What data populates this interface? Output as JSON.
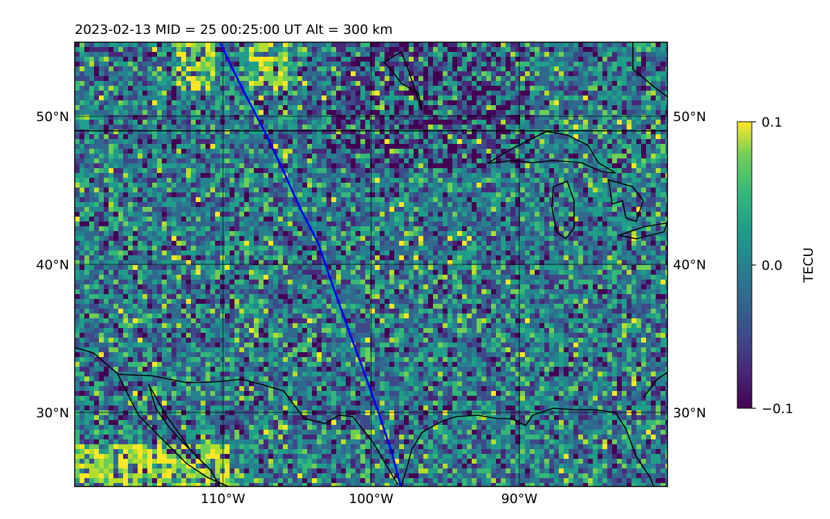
{
  "title": "2023-02-13  MID =  25    00:25:00  UT  Alt = 300 km",
  "map": {
    "lon_range": [
      -120,
      -80
    ],
    "lat_range": [
      25,
      55
    ],
    "gridlines": true,
    "lon_ticks": [
      {
        "value": -110,
        "label": "110°W"
      },
      {
        "value": -100,
        "label": "100°W"
      },
      {
        "value": -90,
        "label": "90°W"
      }
    ],
    "lat_ticks": [
      {
        "value": 30,
        "label": "30°N"
      },
      {
        "value": 40,
        "label": "40°N"
      },
      {
        "value": 50,
        "label": "50°N"
      }
    ],
    "overlays": [
      "coastlines",
      "international borders",
      "great lakes"
    ],
    "track_color": "#0000ff",
    "track": [
      [
        -110.2,
        55
      ],
      [
        -109.5,
        53.5
      ],
      [
        -108.5,
        51.5
      ],
      [
        -107.2,
        49
      ],
      [
        -106,
        46.5
      ],
      [
        -104.8,
        43.8
      ],
      [
        -103.6,
        41.5
      ],
      [
        -102.6,
        38.6
      ],
      [
        -101.5,
        35.5
      ],
      [
        -100.5,
        32.8
      ],
      [
        -99.5,
        30
      ],
      [
        -98.6,
        27.3
      ],
      [
        -98,
        25
      ]
    ]
  },
  "colorbar": {
    "label": "TECU",
    "colormap": "viridis",
    "min": -0.1,
    "max": 0.1,
    "ticks": [
      {
        "value": 0.1,
        "label": "0.1"
      },
      {
        "value": 0.0,
        "label": "0.0"
      },
      {
        "value": -0.1,
        "label": "−0.1"
      }
    ]
  }
}
